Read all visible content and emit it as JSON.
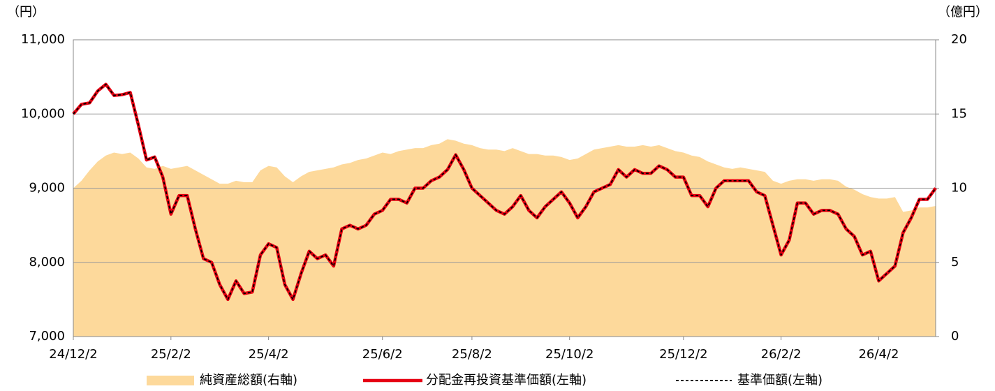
{
  "chart_data": {
    "type": "line",
    "ylabel": "（円）",
    "y2label": "（億円）",
    "ylim": [
      7000,
      11000
    ],
    "yticks": [
      {
        "value": 7000,
        "label": "7,000"
      },
      {
        "value": 8000,
        "label": "8,000"
      },
      {
        "value": 9000,
        "label": "9,000"
      },
      {
        "value": 10000,
        "label": "10,000"
      },
      {
        "value": 11000,
        "label": "11,000"
      }
    ],
    "y2lim": [
      0,
      20
    ],
    "y2ticks": [
      0,
      5,
      10,
      15,
      20
    ],
    "grid": true,
    "categories": [
      "24/12/2",
      null,
      null,
      null,
      null,
      null,
      null,
      null,
      null,
      null,
      null,
      null,
      "25/2/2",
      null,
      null,
      null,
      null,
      null,
      null,
      null,
      null,
      null,
      null,
      null,
      "25/4/2",
      null,
      null,
      null,
      null,
      null,
      null,
      null,
      null,
      null,
      null,
      null,
      null,
      null,
      "25/6/2",
      null,
      null,
      null,
      null,
      null,
      null,
      null,
      null,
      null,
      null,
      "25/8/2",
      null,
      null,
      null,
      null,
      null,
      null,
      null,
      null,
      null,
      null,
      null,
      "25/10/2",
      null,
      null,
      null,
      null,
      null,
      null,
      null,
      null,
      null,
      null,
      null,
      null,
      null,
      "25/12/2",
      null,
      null,
      null,
      null,
      null,
      null,
      null,
      null,
      null,
      null,
      null,
      "26/2/2",
      null,
      null,
      null,
      null,
      null,
      null,
      null,
      null,
      null,
      null,
      null,
      "26/4/2",
      null,
      null,
      null,
      null,
      null,
      null,
      null
    ],
    "series": [
      {
        "name": "純資産総額(右軸)",
        "color": "#fdd99b",
        "axis": "y2",
        "style": "area",
        "values": [
          10.0,
          10.5,
          11.2,
          11.8,
          12.2,
          12.4,
          12.3,
          12.4,
          12.0,
          11.4,
          11.3,
          11.5,
          11.3,
          11.4,
          11.5,
          11.2,
          10.9,
          10.6,
          10.3,
          10.3,
          10.5,
          10.4,
          10.4,
          11.2,
          11.5,
          11.4,
          10.8,
          10.4,
          10.8,
          11.1,
          11.2,
          11.3,
          11.4,
          11.6,
          11.7,
          11.9,
          12.0,
          12.2,
          12.4,
          12.3,
          12.5,
          12.6,
          12.7,
          12.7,
          12.9,
          13.0,
          13.3,
          13.2,
          13.0,
          12.9,
          12.7,
          12.6,
          12.6,
          12.5,
          12.7,
          12.5,
          12.3,
          12.3,
          12.2,
          12.2,
          12.1,
          11.9,
          12.0,
          12.3,
          12.6,
          12.7,
          12.8,
          12.9,
          12.8,
          12.8,
          12.9,
          12.8,
          12.9,
          12.7,
          12.5,
          12.4,
          12.2,
          12.1,
          11.8,
          11.6,
          11.4,
          11.3,
          11.4,
          11.3,
          11.2,
          11.1,
          10.5,
          10.3,
          10.5,
          10.6,
          10.6,
          10.5,
          10.6,
          10.6,
          10.5,
          10.1,
          9.9,
          9.6,
          9.4,
          9.3,
          9.3,
          9.4,
          8.4,
          8.5,
          8.7,
          8.7,
          8.8
        ]
      },
      {
        "name": "分配金再投資基準価額(左軸)",
        "color": "#e60012",
        "style": "solid",
        "values": [
          10000,
          10130,
          10150,
          10310,
          10400,
          10250,
          10260,
          10290,
          9850,
          9380,
          9420,
          9150,
          8650,
          8900,
          8900,
          8450,
          8050,
          8000,
          7700,
          7500,
          7750,
          7580,
          7600,
          8100,
          8250,
          8200,
          7700,
          7500,
          7850,
          8150,
          8050,
          8100,
          7950,
          8450,
          8500,
          8450,
          8500,
          8650,
          8700,
          8850,
          8850,
          8800,
          9000,
          9000,
          9100,
          9150,
          9250,
          9450,
          9250,
          9000,
          8900,
          8800,
          8700,
          8650,
          8750,
          8900,
          8700,
          8600,
          8750,
          8850,
          8950,
          8800,
          8600,
          8750,
          8950,
          9000,
          9050,
          9250,
          9150,
          9250,
          9200,
          9200,
          9300,
          9250,
          9150,
          9150,
          8900,
          8900,
          8750,
          9000,
          9100,
          9100,
          9100,
          9100,
          8950,
          8900,
          8500,
          8100,
          8300,
          8800,
          8800,
          8650,
          8700,
          8700,
          8650,
          8450,
          8350,
          8100,
          8150,
          7750,
          7850,
          7950,
          8400,
          8600,
          8850,
          8850,
          9000
        ]
      },
      {
        "name": "基準価額(左軸)",
        "color": "#000000",
        "style": "dashed",
        "values": [
          10000,
          10130,
          10150,
          10310,
          10400,
          10250,
          10260,
          10290,
          9850,
          9380,
          9420,
          9150,
          8650,
          8900,
          8900,
          8450,
          8050,
          8000,
          7700,
          7500,
          7750,
          7580,
          7600,
          8100,
          8250,
          8200,
          7700,
          7500,
          7850,
          8150,
          8050,
          8100,
          7950,
          8450,
          8500,
          8450,
          8500,
          8650,
          8700,
          8850,
          8850,
          8800,
          9000,
          9000,
          9100,
          9150,
          9250,
          9450,
          9250,
          9000,
          8900,
          8800,
          8700,
          8650,
          8750,
          8900,
          8700,
          8600,
          8750,
          8850,
          8950,
          8800,
          8600,
          8750,
          8950,
          9000,
          9050,
          9250,
          9150,
          9250,
          9200,
          9200,
          9300,
          9250,
          9150,
          9150,
          8900,
          8900,
          8750,
          9000,
          9100,
          9100,
          9100,
          9100,
          8950,
          8900,
          8500,
          8100,
          8300,
          8800,
          8800,
          8650,
          8700,
          8700,
          8650,
          8450,
          8350,
          8100,
          8150,
          7750,
          7850,
          7950,
          8400,
          8600,
          8850,
          8850,
          9000
        ]
      }
    ]
  }
}
